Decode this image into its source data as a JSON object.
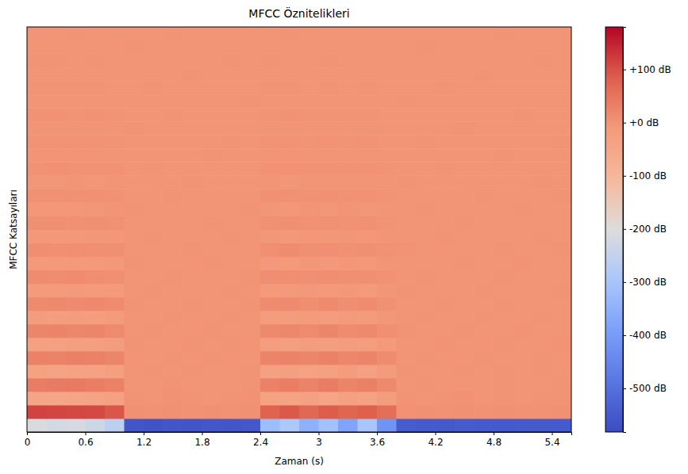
{
  "chart_data": {
    "type": "heatmap",
    "title": "MFCC Öznitelikleri",
    "x_label": "Zaman (s)",
    "y_label": "MFCC Katsayıları",
    "tick_labels": "x",
    "x": [
      0,
      0.2,
      0.4,
      0.6,
      0.8,
      1,
      1.2,
      1.4,
      1.6,
      1.8,
      2,
      2.2,
      2.4,
      2.6,
      2.8,
      3,
      3.2,
      3.4,
      3.6,
      3.8,
      4,
      4.2,
      4.4,
      4.6,
      4.8,
      5,
      5.2,
      5.4
    ],
    "xlim": [
      0,
      5.6
    ],
    "xticks": [
      0,
      0.6,
      1.2,
      1.8,
      2.4,
      3,
      3.6,
      4.2,
      4.8,
      5.4
    ],
    "cells": [
      [
        -210,
        -220,
        -215,
        -230,
        -260,
        -560,
        -565,
        -560,
        -562,
        -558,
        -560,
        -555,
        -320,
        -290,
        -350,
        -310,
        -380,
        -300,
        -420,
        -545,
        -550,
        -552,
        -548,
        -550,
        -553,
        -549,
        -551,
        -550
      ],
      [
        115,
        112,
        110,
        108,
        95,
        4,
        3,
        5,
        2,
        4,
        3,
        5,
        80,
        92,
        70,
        88,
        75,
        85,
        60,
        3,
        4,
        2,
        5,
        3,
        4,
        2,
        3,
        4
      ],
      [
        -45,
        -48,
        -42,
        -40,
        -30,
        1,
        0,
        2,
        1,
        0,
        1,
        2,
        -35,
        -40,
        -30,
        -42,
        -28,
        -36,
        -20,
        1,
        0,
        1,
        2,
        0,
        1,
        0,
        1,
        1
      ],
      [
        38,
        40,
        42,
        36,
        30,
        -1,
        0,
        1,
        0,
        -1,
        0,
        1,
        30,
        35,
        28,
        38,
        25,
        32,
        18,
        0,
        1,
        0,
        -1,
        0,
        1,
        0,
        0,
        1
      ],
      [
        -35,
        -38,
        -33,
        -36,
        -25,
        0,
        1,
        0,
        1,
        0,
        0,
        1,
        -30,
        -25,
        -32,
        -28,
        -20,
        -30,
        -15,
        1,
        0,
        0,
        1,
        0,
        1,
        0,
        1,
        0
      ],
      [
        30,
        28,
        32,
        30,
        22,
        0,
        0,
        1,
        0,
        1,
        0,
        0,
        25,
        28,
        22,
        30,
        20,
        26,
        12,
        0,
        1,
        0,
        0,
        1,
        0,
        0,
        1,
        0
      ],
      [
        -28,
        -30,
        -25,
        -27,
        -20,
        1,
        0,
        0,
        1,
        0,
        1,
        0,
        -22,
        -25,
        -20,
        -24,
        -18,
        -22,
        -10,
        0,
        0,
        1,
        0,
        0,
        1,
        0,
        0,
        1
      ],
      [
        22,
        25,
        20,
        24,
        15,
        0,
        1,
        0,
        0,
        1,
        0,
        0,
        18,
        20,
        15,
        22,
        12,
        18,
        8,
        1,
        0,
        0,
        1,
        0,
        0,
        1,
        0,
        0
      ],
      [
        -20,
        -22,
        -18,
        -21,
        -14,
        0,
        0,
        1,
        0,
        0,
        1,
        0,
        -16,
        -18,
        -14,
        -17,
        -12,
        -15,
        -6,
        0,
        1,
        0,
        0,
        1,
        0,
        0,
        1,
        0
      ],
      [
        16,
        18,
        15,
        17,
        12,
        1,
        0,
        0,
        1,
        0,
        0,
        1,
        12,
        15,
        10,
        14,
        9,
        12,
        5,
        0,
        0,
        1,
        0,
        0,
        1,
        0,
        0,
        0
      ],
      [
        -14,
        -15,
        -12,
        -13,
        -10,
        0,
        1,
        0,
        0,
        0,
        1,
        0,
        -10,
        -12,
        -8,
        -11,
        -7,
        -10,
        -4,
        1,
        0,
        0,
        0,
        1,
        0,
        0,
        0,
        1
      ],
      [
        12,
        11,
        13,
        10,
        8,
        0,
        0,
        1,
        0,
        0,
        0,
        1,
        9,
        10,
        7,
        9,
        6,
        8,
        3,
        0,
        1,
        0,
        0,
        0,
        1,
        0,
        0,
        0
      ],
      [
        -10,
        -11,
        -9,
        -10,
        -7,
        1,
        0,
        0,
        0,
        1,
        0,
        0,
        -8,
        -9,
        -6,
        -8,
        -5,
        -7,
        -3,
        0,
        0,
        0,
        1,
        0,
        0,
        1,
        0,
        0
      ],
      [
        9,
        8,
        10,
        8,
        6,
        0,
        0,
        0,
        1,
        0,
        0,
        0,
        7,
        12,
        6,
        7,
        5,
        6,
        2,
        1,
        0,
        0,
        0,
        0,
        1,
        0,
        0,
        1
      ],
      [
        -8,
        -7,
        -8,
        -6,
        -5,
        0,
        1,
        0,
        0,
        0,
        1,
        0,
        -6,
        -7,
        -5,
        -6,
        -4,
        -5,
        -2,
        0,
        0,
        1,
        0,
        0,
        0,
        0,
        1,
        0
      ],
      [
        6,
        7,
        5,
        6,
        4,
        0,
        0,
        0,
        0,
        1,
        0,
        0,
        5,
        6,
        4,
        5,
        3,
        4,
        1,
        0,
        0,
        0,
        1,
        0,
        0,
        0,
        0,
        0
      ],
      [
        -5,
        -6,
        -5,
        -4,
        -3,
        1,
        0,
        0,
        0,
        0,
        0,
        1,
        -4,
        -5,
        -3,
        -4,
        -3,
        -4,
        -1,
        0,
        1,
        0,
        0,
        0,
        0,
        1,
        0,
        0
      ],
      [
        5,
        4,
        5,
        4,
        3,
        0,
        0,
        1,
        0,
        0,
        0,
        0,
        4,
        4,
        3,
        4,
        2,
        3,
        1,
        0,
        0,
        0,
        0,
        1,
        0,
        0,
        0,
        1
      ],
      [
        -4,
        -4,
        -3,
        -4,
        -2,
        0,
        0,
        0,
        1,
        0,
        0,
        0,
        -3,
        -4,
        -2,
        -3,
        -2,
        -3,
        -1,
        1,
        0,
        0,
        0,
        0,
        0,
        0,
        1,
        0
      ],
      [
        3,
        4,
        3,
        3,
        2,
        0,
        1,
        0,
        0,
        0,
        0,
        0,
        3,
        3,
        2,
        3,
        2,
        2,
        1,
        0,
        0,
        1,
        0,
        0,
        0,
        0,
        0,
        0
      ],
      [
        -3,
        -3,
        -2,
        -3,
        -2,
        0,
        0,
        0,
        0,
        1,
        0,
        0,
        -2,
        -3,
        -2,
        -2,
        -1,
        -2,
        0,
        0,
        0,
        0,
        0,
        0,
        1,
        0,
        0,
        0
      ],
      [
        3,
        2,
        3,
        2,
        1,
        0,
        0,
        0,
        0,
        0,
        1,
        0,
        2,
        2,
        1,
        2,
        1,
        2,
        0,
        0,
        1,
        0,
        0,
        0,
        0,
        0,
        0,
        1
      ],
      [
        -2,
        -2,
        -2,
        -2,
        -1,
        1,
        0,
        0,
        0,
        0,
        0,
        0,
        -2,
        -2,
        -1,
        -2,
        -1,
        -1,
        0,
        0,
        0,
        0,
        1,
        0,
        0,
        0,
        0,
        0
      ],
      [
        2,
        2,
        1,
        2,
        1,
        0,
        0,
        1,
        0,
        0,
        0,
        0,
        1,
        2,
        1,
        1,
        1,
        1,
        0,
        0,
        0,
        0,
        0,
        0,
        0,
        1,
        0,
        0
      ],
      [
        -1,
        -2,
        -1,
        -1,
        -1,
        0,
        0,
        0,
        0,
        0,
        0,
        1,
        -1,
        -1,
        -1,
        -1,
        0,
        -1,
        0,
        1,
        0,
        0,
        0,
        0,
        0,
        0,
        0,
        0
      ],
      [
        1,
        1,
        1,
        1,
        0,
        0,
        1,
        0,
        0,
        0,
        0,
        0,
        1,
        1,
        0,
        1,
        0,
        1,
        0,
        0,
        0,
        1,
        0,
        0,
        0,
        0,
        0,
        0
      ],
      [
        -1,
        -1,
        -1,
        -1,
        0,
        0,
        0,
        0,
        1,
        0,
        0,
        0,
        -1,
        -1,
        0,
        -1,
        0,
        0,
        0,
        0,
        0,
        0,
        0,
        1,
        0,
        0,
        0,
        0
      ],
      [
        1,
        1,
        0,
        1,
        0,
        0,
        0,
        0,
        0,
        0,
        1,
        0,
        1,
        0,
        0,
        1,
        0,
        0,
        0,
        0,
        0,
        0,
        0,
        0,
        0,
        0,
        1,
        0
      ],
      [
        0,
        -1,
        0,
        0,
        0,
        1,
        0,
        0,
        0,
        0,
        0,
        0,
        0,
        0,
        0,
        -1,
        0,
        0,
        0,
        0,
        1,
        0,
        0,
        0,
        0,
        0,
        0,
        0
      ],
      [
        0,
        0,
        1,
        0,
        0,
        0,
        0,
        1,
        0,
        0,
        0,
        0,
        0,
        1,
        0,
        0,
        0,
        0,
        0,
        0,
        0,
        0,
        0,
        0,
        1,
        0,
        0,
        0
      ]
    ],
    "color_range": [
      -582,
      180
    ],
    "color_ticks": [
      {
        "value": -500,
        "label": "-500 dB"
      },
      {
        "value": -400,
        "label": "-400 dB"
      },
      {
        "value": -300,
        "label": "-300 dB"
      },
      {
        "value": -200,
        "label": "-200 dB"
      },
      {
        "value": -100,
        "label": "-100 dB"
      },
      {
        "value": 0,
        "label": "+0 dB"
      },
      {
        "value": 100,
        "label": "+100 dB"
      }
    ]
  }
}
